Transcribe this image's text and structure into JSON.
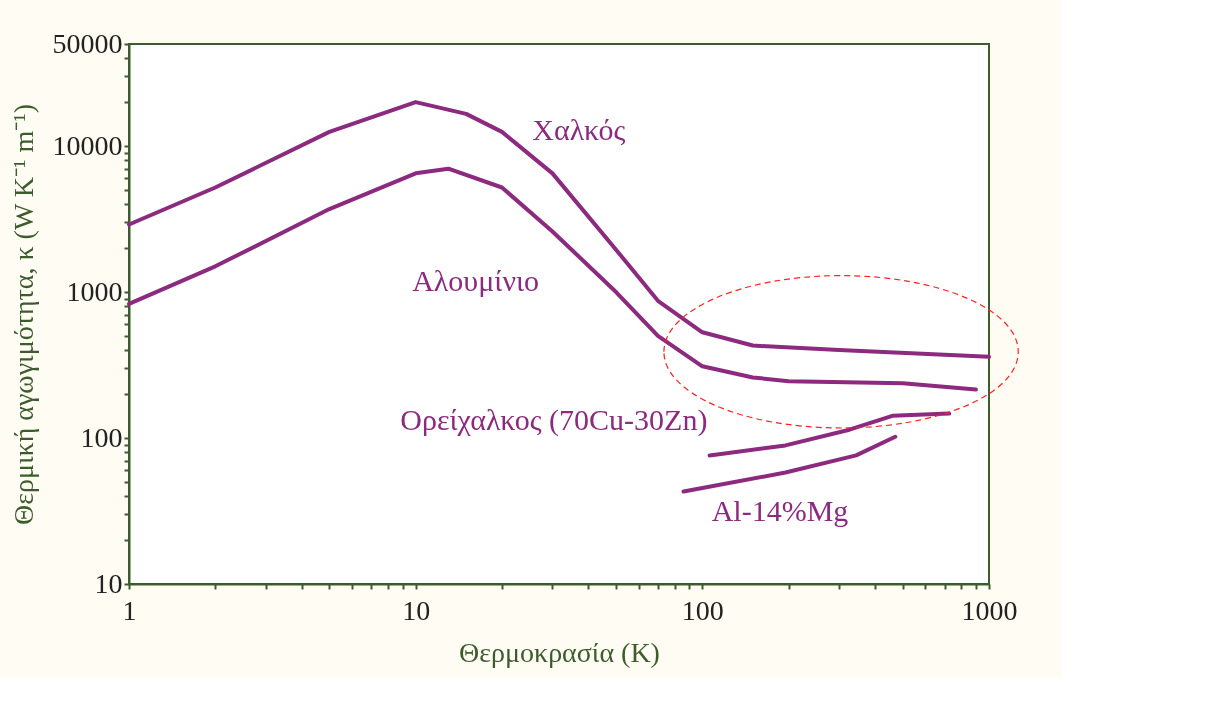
{
  "chart_data": {
    "type": "line",
    "xlabel": "Θερμοκρασία (K)",
    "ylabel": "Θερμική αγωγιμότητα, κ (W K⁻¹ m⁻¹)",
    "log": "xy",
    "grid": false,
    "legend": false,
    "marker": "none",
    "line_style": "solid",
    "xlim": [
      1,
      1000
    ],
    "ylim": [
      10,
      50000
    ],
    "xticks": [
      1,
      {
        "value": 2,
        "label": null
      },
      {
        "value": 3,
        "label": null
      },
      {
        "value": 4,
        "label": null
      },
      {
        "value": 5,
        "label": null
      },
      {
        "value": 6,
        "label": null
      },
      {
        "value": 7,
        "label": null
      },
      {
        "value": 8,
        "label": null
      },
      {
        "value": 9,
        "label": null
      },
      10,
      {
        "value": 20,
        "label": null
      },
      {
        "value": 30,
        "label": null
      },
      {
        "value": 40,
        "label": null
      },
      {
        "value": 50,
        "label": null
      },
      {
        "value": 60,
        "label": null
      },
      {
        "value": 70,
        "label": null
      },
      {
        "value": 80,
        "label": null
      },
      {
        "value": 90,
        "label": null
      },
      100,
      {
        "value": 200,
        "label": null
      },
      {
        "value": 300,
        "label": null
      },
      {
        "value": 400,
        "label": null
      },
      {
        "value": 500,
        "label": null
      },
      {
        "value": 600,
        "label": null
      },
      {
        "value": 700,
        "label": null
      },
      {
        "value": 800,
        "label": null
      },
      {
        "value": 900,
        "label": null
      },
      1000
    ],
    "yticks": [
      10,
      {
        "value": 20,
        "label": null
      },
      {
        "value": 30,
        "label": null
      },
      {
        "value": 40,
        "label": null
      },
      {
        "value": 50,
        "label": null
      },
      {
        "value": 60,
        "label": null
      },
      {
        "value": 70,
        "label": null
      },
      {
        "value": 80,
        "label": null
      },
      {
        "value": 90,
        "label": null
      },
      100,
      {
        "value": 200,
        "label": null
      },
      {
        "value": 300,
        "label": null
      },
      {
        "value": 400,
        "label": null
      },
      {
        "value": 500,
        "label": null
      },
      {
        "value": 600,
        "label": null
      },
      {
        "value": 700,
        "label": null
      },
      {
        "value": 800,
        "label": null
      },
      {
        "value": 900,
        "label": null
      },
      1000,
      {
        "value": 2000,
        "label": null
      },
      {
        "value": 3000,
        "label": null
      },
      {
        "value": 4000,
        "label": null
      },
      {
        "value": 5000,
        "label": null
      },
      {
        "value": 6000,
        "label": null
      },
      {
        "value": 7000,
        "label": null
      },
      {
        "value": 8000,
        "label": null
      },
      {
        "value": 9000,
        "label": null
      },
      10000,
      {
        "value": 20000,
        "label": null
      },
      {
        "value": 30000,
        "label": null
      },
      {
        "value": 40000,
        "label": null
      },
      50000
    ],
    "series": [
      {
        "name": "Χαλκός",
        "color": "#8b2a7e",
        "x": [
          1,
          2,
          5,
          10,
          15,
          20,
          30,
          50,
          70,
          100,
          150,
          300,
          1000
        ],
        "values": [
          2900,
          5200,
          12500,
          20000,
          16600,
          12500,
          6500,
          1950,
          870,
          530,
          430,
          400,
          360
        ]
      },
      {
        "name": "Αλουμίνιο",
        "color": "#8b2a7e",
        "x": [
          1,
          2,
          5,
          10,
          13,
          20,
          30,
          50,
          70,
          100,
          150,
          200,
          500,
          900
        ],
        "values": [
          830,
          1500,
          3700,
          6500,
          7000,
          5200,
          2600,
          1000,
          500,
          310,
          260,
          245,
          237,
          215
        ]
      },
      {
        "name": "Ορείχαλκος (70Cu-30Zn)",
        "color": "#8b2a7e",
        "x": [
          106,
          195,
          326,
          460,
          726
        ],
        "values": [
          76,
          89,
          114,
          142,
          147
        ]
      },
      {
        "name": "Al-14%Mg",
        "color": "#8b2a7e",
        "x": [
          86,
          195,
          344,
          471
        ],
        "values": [
          43,
          58,
          76,
          102
        ]
      }
    ]
  }
}
